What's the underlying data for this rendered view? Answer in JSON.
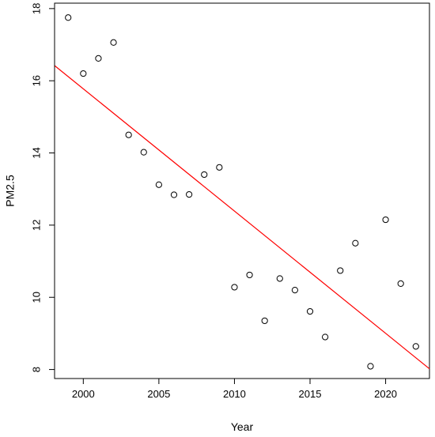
{
  "chart_data": {
    "type": "scatter",
    "xlabel": "Year",
    "ylabel": "PM2.5",
    "xlim": [
      1998.1,
      2022.9
    ],
    "ylim": [
      7.75,
      18.15
    ],
    "x_ticks": [
      2000,
      2005,
      2010,
      2015,
      2020
    ],
    "y_ticks": [
      8,
      10,
      12,
      14,
      16,
      18
    ],
    "grid": false,
    "legend": "none",
    "points_color": "#000000",
    "trendline_color": "#ff0000",
    "points": [
      {
        "x": 1999,
        "y": 17.75
      },
      {
        "x": 2000,
        "y": 16.2
      },
      {
        "x": 2001,
        "y": 16.62
      },
      {
        "x": 2002,
        "y": 17.06
      },
      {
        "x": 2003,
        "y": 14.5
      },
      {
        "x": 2004,
        "y": 14.02
      },
      {
        "x": 2005,
        "y": 13.12
      },
      {
        "x": 2006,
        "y": 12.84
      },
      {
        "x": 2007,
        "y": 12.85
      },
      {
        "x": 2008,
        "y": 13.4
      },
      {
        "x": 2009,
        "y": 13.6
      },
      {
        "x": 2010,
        "y": 10.28
      },
      {
        "x": 2011,
        "y": 10.62
      },
      {
        "x": 2012,
        "y": 9.35
      },
      {
        "x": 2013,
        "y": 10.52
      },
      {
        "x": 2014,
        "y": 10.2
      },
      {
        "x": 2015,
        "y": 9.61
      },
      {
        "x": 2016,
        "y": 8.9
      },
      {
        "x": 2017,
        "y": 10.74
      },
      {
        "x": 2018,
        "y": 11.5
      },
      {
        "x": 2019,
        "y": 8.09
      },
      {
        "x": 2020,
        "y": 12.15
      },
      {
        "x": 2021,
        "y": 10.38
      },
      {
        "x": 2022,
        "y": 8.64
      }
    ],
    "trendline": {
      "start": {
        "x": 1998.1,
        "y": 16.42
      },
      "end": {
        "x": 2022.9,
        "y": 8.02
      }
    }
  }
}
